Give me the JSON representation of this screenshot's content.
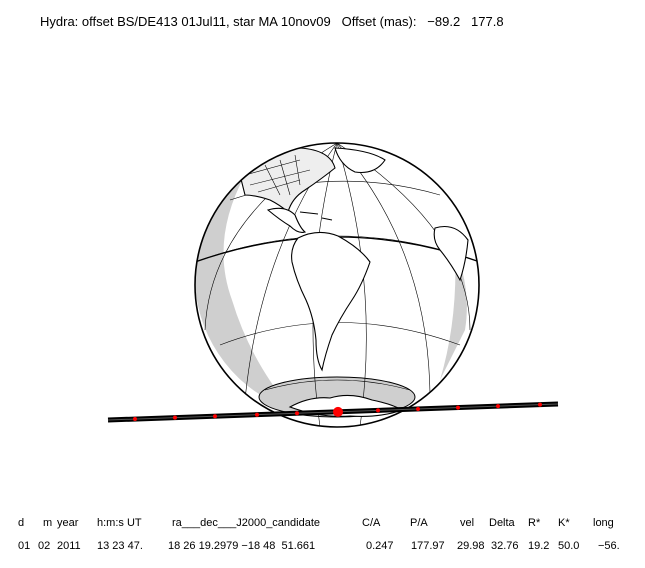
{
  "title": "Hydra: offset BS/DE413 01Jul11, star MA 10nov09   Offset (mas):   −89.2   177.8",
  "colors": {
    "ink": "#000000",
    "shadow": "#cfcfcf",
    "track_mark": "#ff0000"
  },
  "table": {
    "headers": [
      "d",
      "m",
      "year",
      "h:m:s UT",
      "ra___dec___J2000_candidate",
      "C/A",
      "P/A",
      "vel",
      "Delta",
      "R*",
      "K*",
      "long"
    ],
    "values": [
      "01",
      "02",
      "2011",
      "13 23 47.",
      "18 26 19.2979 −18 48  51.661",
      "0.247",
      "177.97",
      "29.98",
      "32.76",
      "19.2",
      "50.0",
      "−56."
    ]
  }
}
